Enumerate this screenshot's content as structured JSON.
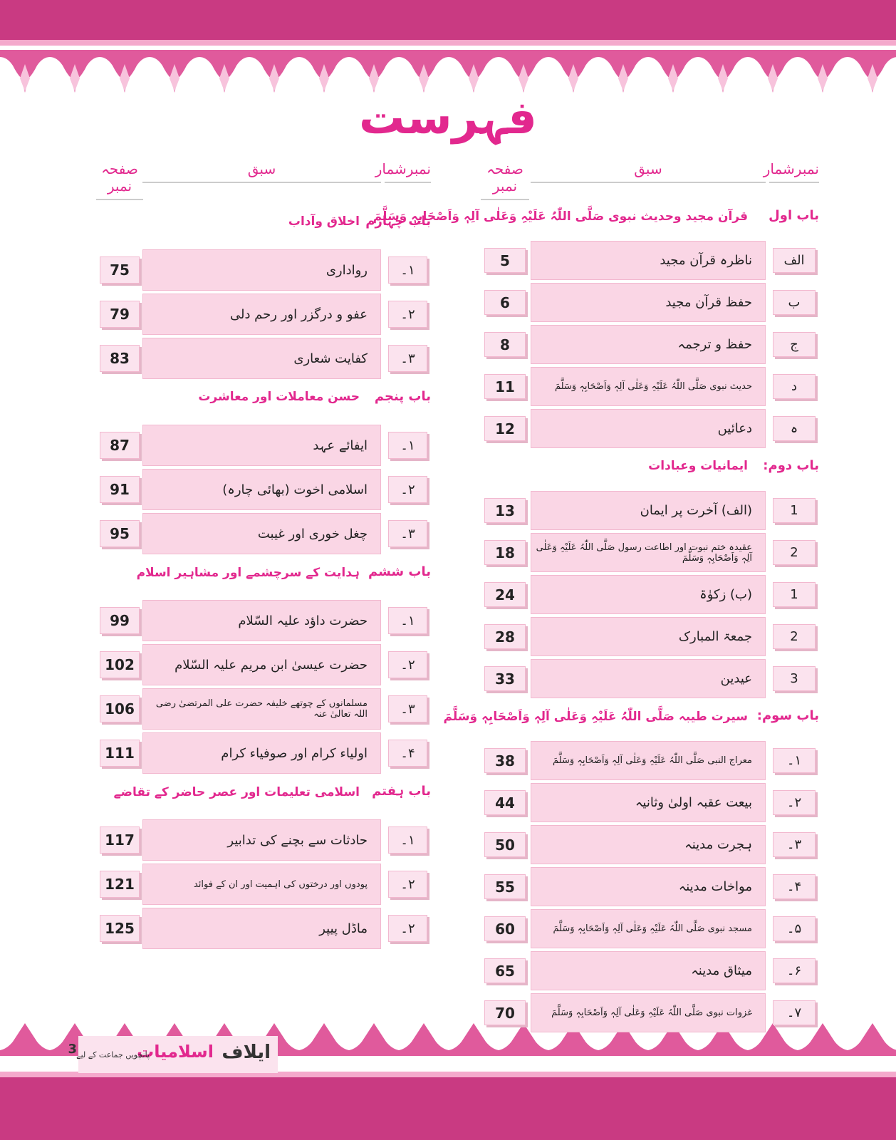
{
  "title": "فہرست",
  "headers": {
    "number": "نمبرشمار",
    "lesson": "سبق",
    "page": "صفحہ نمبر"
  },
  "columns": [
    [
      {
        "chapter": "باب اول",
        "title": "قرآن مجید وحدیث نبوی صَلَّی اللّٰہُ عَلَیْہِ وَعَلٰی آلِہٖ وَاَصْحَابِہٖ وَسَلَّمَ",
        "rows": [
          {
            "number": "الف",
            "lesson": "ناظرہ قرآن مجید",
            "page": 5
          },
          {
            "number": "ب",
            "lesson": "حفظ قرآن مجید",
            "page": 6
          },
          {
            "number": "ج",
            "lesson": "حفظ و ترجمہ",
            "page": 8
          },
          {
            "number": "د",
            "lesson": "حدیث نبوی صَلَّی اللّٰہُ عَلَیْہِ وَعَلٰی آلِہٖ وَاَصْحَابِہٖ وَسَلَّمَ",
            "page": 11
          },
          {
            "number": "ہ",
            "lesson": "دعائیں",
            "page": 12
          }
        ]
      },
      {
        "chapter": "باب دوم:",
        "title": "ایمانیات وعبادات",
        "rows": [
          {
            "number": "1",
            "lesson": "(الف)   آخرت پر ایمان",
            "page": 13
          },
          {
            "number": "2",
            "lesson": "عقیدہ ختم نبوت اور اطاعت رسول صَلَّی اللّٰہُ عَلَیْہِ وَعَلٰی آلِہٖ وَاَصْحَابِہٖ وَسَلَّمَ",
            "page": 18
          },
          {
            "number": "1",
            "lesson": "(ب)   زکوٰۃ",
            "page": 24
          },
          {
            "number": "2",
            "lesson": "جمعۃ المبارک",
            "page": 28
          },
          {
            "number": "3",
            "lesson": "عیدین",
            "page": 33
          }
        ]
      },
      {
        "chapter": "باب سوم:",
        "title": "سیرت طیبہ صَلَّی اللّٰہُ عَلَیْہِ وَعَلٰی آلِہٖ وَاَصْحَابِہٖ وَسَلَّمَ",
        "rows": [
          {
            "number": "۱۔",
            "lesson": "معراج النبی صَلَّی اللّٰہُ عَلَیْہِ وَعَلٰی آلِہٖ وَاَصْحَابِہٖ وَسَلَّمَ",
            "page": 38
          },
          {
            "number": "۲۔",
            "lesson": "بیعت عقبہ اولیٰ وثانیہ",
            "page": 44
          },
          {
            "number": "۳۔",
            "lesson": "ہجرت مدینہ",
            "page": 50
          },
          {
            "number": "۴۔",
            "lesson": "مواخات مدینہ",
            "page": 55
          },
          {
            "number": "۵۔",
            "lesson": "مسجد نبوی صَلَّی اللّٰہُ عَلَیْہِ وَعَلٰی آلِہٖ وَاَصْحَابِہٖ وَسَلَّمَ",
            "page": 60
          },
          {
            "number": "۶۔",
            "lesson": "میثاق مدینہ",
            "page": 65
          },
          {
            "number": "۷۔",
            "lesson": "غزوات نبوی صَلَّی اللّٰہُ عَلَیْہِ وَعَلٰی آلِہٖ وَاَصْحَابِہٖ وَسَلَّمَ",
            "page": 70
          }
        ]
      }
    ],
    [
      {
        "chapter": "باب چہارم",
        "title": "اخلاق وآداب",
        "rows": [
          {
            "number": "۱۔",
            "lesson": "رواداری",
            "page": 75
          },
          {
            "number": "۲۔",
            "lesson": "عفو و درگزر اور رحم دلی",
            "page": 79
          },
          {
            "number": "۳۔",
            "lesson": "کفایت شعاری",
            "page": 83
          }
        ]
      },
      {
        "chapter": "باب پنجم",
        "title": "حسن معاملات اور معاشرت",
        "rows": [
          {
            "number": "۱۔",
            "lesson": "ایفائے عہد",
            "page": 87
          },
          {
            "number": "۲۔",
            "lesson": "اسلامی اخوت  (بھائی چارہ)",
            "page": 91
          },
          {
            "number": "۳۔",
            "lesson": "چغل خوری اور غیبت",
            "page": 95
          }
        ]
      },
      {
        "chapter": "باب ششم",
        "title": "ہدایت کے سرچشمے اور مشاہیر اسلام",
        "rows": [
          {
            "number": "۱۔",
            "lesson": "حضرت داؤد علیہ السّلام",
            "page": 99
          },
          {
            "number": "۲۔",
            "lesson": "حضرت عیسیٰ ابن مریم علیہ السّلام",
            "page": 102
          },
          {
            "number": "۳۔",
            "lesson": "مسلمانوں کے چوتھے خلیفہ حضرت علی المرتضیٰ رضی اللہ تعالیٰ عنہ",
            "page": 106
          },
          {
            "number": "۴۔",
            "lesson": "اولیاء کرام اور صوفیاء کرام",
            "page": 111
          }
        ]
      },
      {
        "chapter": "باب ہفتم",
        "title": "اسلامی تعلیمات اور عصر حاضر کے تقاضے",
        "rows": [
          {
            "number": "۱۔",
            "lesson": "حادثات سے بچنے کی تدابیر",
            "page": 117
          },
          {
            "number": "۲۔",
            "lesson": "پودوں اور درختوں کی اہمیت اور ان کے فوائد",
            "page": 121
          },
          {
            "number": "۲۔",
            "lesson": "ماڈل پیپر",
            "page": 125
          }
        ]
      }
    ]
  ],
  "footer": {
    "page_number": "3",
    "brand": "ایلاف",
    "subject": "اسلامیات",
    "grade": "پانچویں جماعت کے لیے"
  }
}
